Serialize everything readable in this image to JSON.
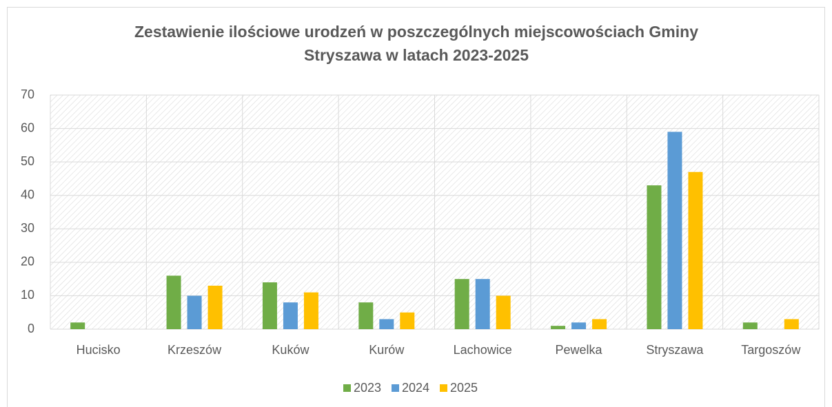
{
  "chart_data": {
    "type": "bar",
    "title": [
      "Zestawienie ilościowe urodzeń w poszczególnych miejscowościach Gminy",
      "Stryszawa w latach 2023-2025"
    ],
    "categories": [
      "Hucisko",
      "Krzeszów",
      "Kuków",
      "Kurów",
      "Lachowice",
      "Pewelka",
      "Stryszawa",
      "Targoszów"
    ],
    "series": [
      {
        "name": "2023",
        "color": "#70ad47",
        "values": [
          2,
          16,
          14,
          8,
          15,
          1,
          43,
          2
        ]
      },
      {
        "name": "2024",
        "color": "#5b9bd5",
        "values": [
          0,
          10,
          8,
          3,
          15,
          2,
          59,
          0
        ]
      },
      {
        "name": "2025",
        "color": "#ffc000",
        "values": [
          0,
          13,
          11,
          5,
          10,
          3,
          47,
          3
        ]
      }
    ],
    "ylim": [
      0,
      70
    ],
    "yticks": [
      0,
      10,
      20,
      30,
      40,
      50,
      60,
      70
    ],
    "grid": true,
    "legend": "bottom"
  }
}
